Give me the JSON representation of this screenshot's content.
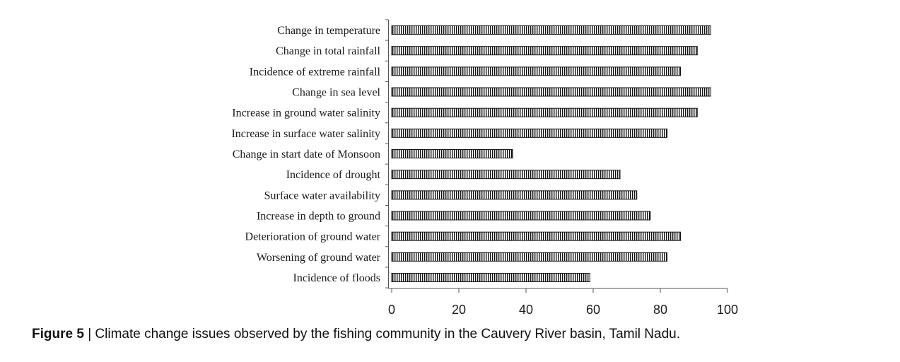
{
  "chart_data": {
    "type": "bar",
    "orientation": "horizontal",
    "categories": [
      "Change in temperature",
      "Change in total rainfall",
      "Incidence of extreme rainfall",
      "Change in sea level",
      "Increase in ground water salinity",
      "Increase in surface water salinity",
      "Change in start date of Monsoon",
      "Incidence of drought",
      "Surface water availability",
      "Increase in depth to ground",
      "Deterioration of ground water",
      "Worsening of ground water",
      "Incidence of floods"
    ],
    "values": [
      95,
      91,
      86,
      95,
      91,
      82,
      36,
      68,
      73,
      77,
      86,
      82,
      59
    ],
    "xlim": [
      0,
      100
    ],
    "xticks": [
      0,
      20,
      40,
      60,
      80,
      100
    ],
    "grid": false,
    "bar_fill": "vertical-hatch",
    "bar_color": "#111111"
  },
  "caption": {
    "label": "Figure 5",
    "separator": "|",
    "text": "Climate change issues observed by the fishing community in the Cauvery River basin, Tamil Nadu."
  }
}
